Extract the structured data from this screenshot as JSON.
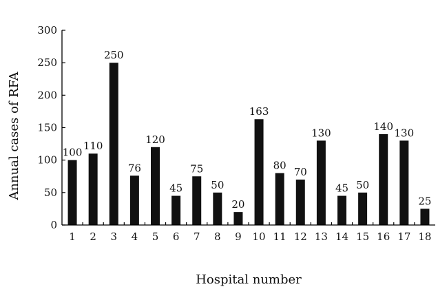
{
  "chart_data": {
    "type": "bar",
    "title": "",
    "xlabel": "Hospital number",
    "ylabel": "Annual cases of RFA",
    "categories": [
      "1",
      "2",
      "3",
      "4",
      "5",
      "6",
      "7",
      "8",
      "9",
      "10",
      "11",
      "12",
      "13",
      "14",
      "15",
      "16",
      "17",
      "18"
    ],
    "values": [
      100,
      110,
      250,
      76,
      120,
      45,
      75,
      50,
      20,
      163,
      80,
      70,
      130,
      45,
      50,
      140,
      130,
      25
    ],
    "data_labels": [
      "100",
      "110",
      "250",
      "76",
      "120",
      "45",
      "75",
      "50",
      "20",
      "163",
      "80",
      "70",
      "130",
      "45",
      "50",
      "140",
      "130",
      "25"
    ],
    "ylim": [
      0,
      300
    ],
    "yticks": [
      0,
      50,
      100,
      150,
      200,
      250,
      300
    ],
    "ytick_labels": [
      "0",
      "50",
      "100",
      "150",
      "200",
      "250",
      "300"
    ],
    "grid": false,
    "bar_color": "#111111"
  }
}
